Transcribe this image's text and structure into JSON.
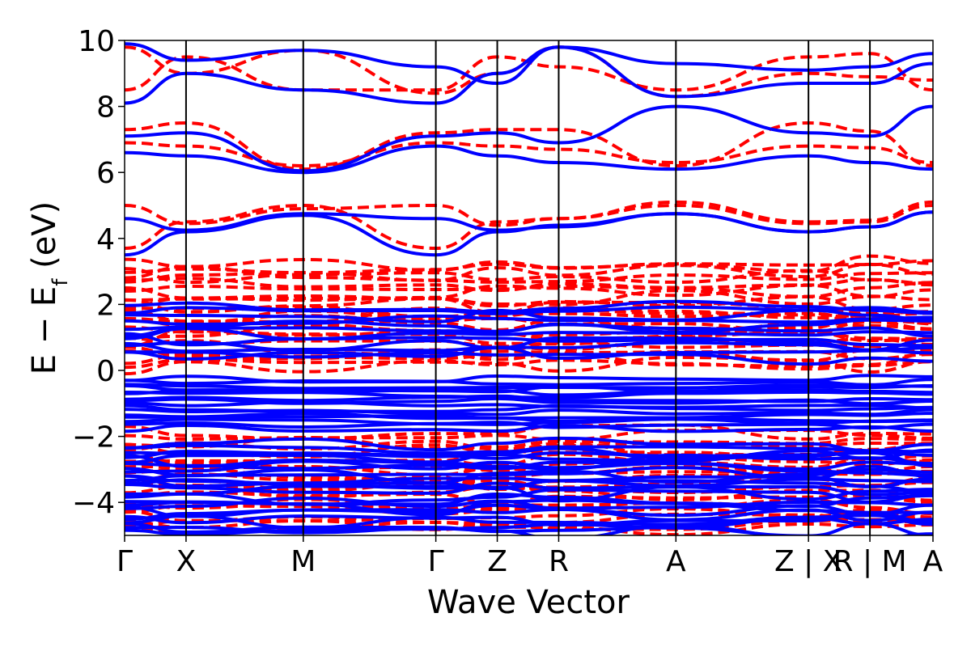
{
  "chart_data": {
    "type": "line",
    "xlabel": "Wave Vector",
    "ylabel": "E − E",
    "ylabel_sub": "f",
    "ylabel_unit": " (eV)",
    "ylim": [
      -5,
      10
    ],
    "yticks": [
      {
        "value": -4,
        "label": "−4"
      },
      {
        "value": -2,
        "label": "−2"
      },
      {
        "value": 0,
        "label": "0"
      },
      {
        "value": 2,
        "label": "2"
      },
      {
        "value": 4,
        "label": "4"
      },
      {
        "value": 6,
        "label": "6"
      },
      {
        "value": 8,
        "label": "8"
      },
      {
        "value": 10,
        "label": "10"
      }
    ],
    "xlim": [
      0,
      1
    ],
    "kpoints": [
      {
        "pos": 0.0,
        "label": "Γ"
      },
      {
        "pos": 0.076,
        "label": "X"
      },
      {
        "pos": 0.221,
        "label": "M"
      },
      {
        "pos": 0.385,
        "label": "Γ"
      },
      {
        "pos": 0.461,
        "label": "Z"
      },
      {
        "pos": 0.537,
        "label": "R"
      },
      {
        "pos": 0.682,
        "label": "A"
      },
      {
        "pos": 0.846,
        "label": "Z | X"
      },
      {
        "pos": 0.922,
        "label": "R | M"
      },
      {
        "pos": 1.0,
        "label": "A"
      }
    ],
    "colors": {
      "solid_bands": "#0000ff",
      "dashed_bands": "#ff0000",
      "kline": "#000000"
    },
    "dashed_upper_bands": [
      [
        3.7,
        4.5,
        5.0,
        3.7,
        4.5,
        4.6,
        5.1,
        4.5,
        4.55,
        5.1
      ],
      [
        5.0,
        4.45,
        4.9,
        5.0,
        4.4,
        4.6,
        5.0,
        4.45,
        4.5,
        5.0
      ],
      [
        6.9,
        6.8,
        6.2,
        6.9,
        6.8,
        6.7,
        6.3,
        6.8,
        6.75,
        6.3
      ],
      [
        7.3,
        7.5,
        6.1,
        7.2,
        7.3,
        7.3,
        6.2,
        7.5,
        7.25,
        6.2
      ],
      [
        8.5,
        9.5,
        8.5,
        8.5,
        9.5,
        9.2,
        8.5,
        9.5,
        9.6,
        8.5
      ],
      [
        9.8,
        9.0,
        9.7,
        8.4,
        9.0,
        9.8,
        8.3,
        9.0,
        8.9,
        8.8
      ]
    ],
    "solid_upper_bands": [
      [
        3.5,
        4.2,
        4.7,
        3.5,
        4.2,
        4.4,
        4.75,
        4.2,
        4.35,
        4.8
      ],
      [
        4.6,
        4.25,
        4.75,
        4.6,
        4.25,
        4.35,
        4.75,
        4.2,
        4.35,
        4.8
      ],
      [
        6.6,
        6.5,
        6.0,
        6.8,
        6.5,
        6.3,
        6.1,
        6.5,
        6.3,
        6.1
      ],
      [
        7.1,
        7.2,
        6.05,
        7.1,
        7.2,
        6.9,
        8.0,
        7.2,
        7.1,
        8.0
      ],
      [
        8.1,
        9.0,
        8.5,
        8.1,
        9.0,
        9.8,
        8.3,
        8.7,
        8.7,
        9.3
      ],
      [
        9.9,
        9.4,
        9.7,
        9.2,
        8.7,
        9.8,
        9.3,
        9.1,
        9.2,
        9.6
      ]
    ]
  }
}
